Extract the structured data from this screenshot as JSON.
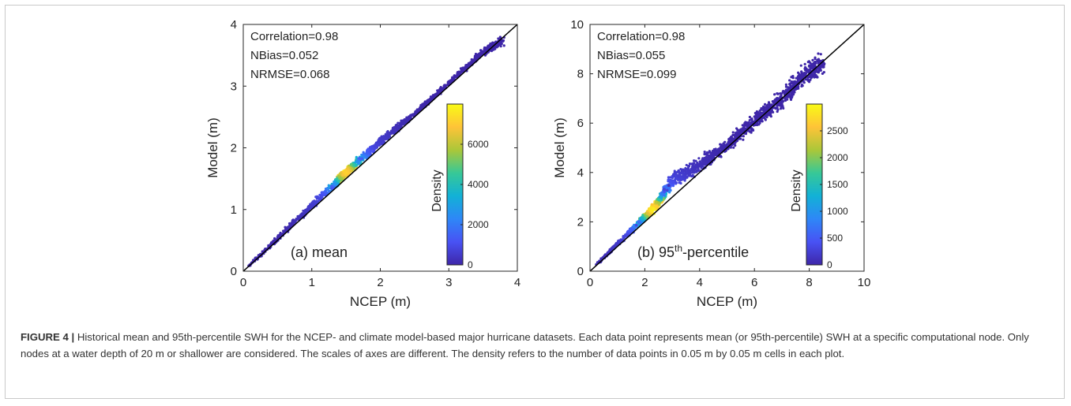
{
  "figure": {
    "caption_label": "FIGURE 4 |",
    "caption_text": " Historical mean and 95th-percentile SWH for the NCEP- and climate model-based major hurricane datasets. Each data point represents mean (or 95th-percentile) SWH at a specific computational node. Only nodes at a water depth of 20 m or shallower are considered. The scales of axes are different. The density refers to the number of data points in 0.05 m by 0.05 m cells in each plot."
  },
  "chart_data": [
    {
      "type": "scatter",
      "panel_label": "(a) mean",
      "xlabel": "NCEP (m)",
      "ylabel": "Model (m)",
      "xlim": [
        0,
        4
      ],
      "ylim": [
        0,
        4
      ],
      "xticks": [
        0,
        1,
        2,
        3,
        4
      ],
      "yticks": [
        0,
        1,
        2,
        3,
        4
      ],
      "stats": [
        "Correlation=0.98",
        "NBias=0.052",
        "NRMSE=0.068"
      ],
      "reference_line": {
        "x": [
          0,
          4
        ],
        "y": [
          0,
          4
        ]
      },
      "colorbar": {
        "label": "Density",
        "range": [
          0,
          8000
        ],
        "ticks": [
          0,
          2000,
          4000,
          6000
        ]
      },
      "trend": {
        "x": [
          0.0,
          0.5,
          1.0,
          1.5,
          2.0,
          2.5,
          3.0,
          3.5,
          3.8
        ],
        "y": [
          0.0,
          0.53,
          1.06,
          1.6,
          2.1,
          2.55,
          3.05,
          3.55,
          3.75
        ]
      },
      "band_width": [
        0.03,
        0.06,
        0.09,
        0.12,
        0.1,
        0.06,
        0.06,
        0.08,
        0.12
      ],
      "hotspot": {
        "x": 1.5,
        "y": 1.6,
        "density": 7200
      },
      "grid": false,
      "legend": "none"
    },
    {
      "type": "scatter",
      "panel_label": "(b) 95",
      "panel_label_sup": "th",
      "panel_label_tail": "-percentile",
      "xlabel": "NCEP (m)",
      "ylabel": "Model (m)",
      "xlim": [
        0,
        10
      ],
      "ylim": [
        0,
        10
      ],
      "xticks": [
        0,
        2,
        4,
        6,
        8,
        10
      ],
      "yticks": [
        0,
        2,
        4,
        6,
        8,
        10
      ],
      "stats": [
        "Correlation=0.98",
        "NBias=0.055",
        "NRMSE=0.099"
      ],
      "reference_line": {
        "x": [
          0,
          10
        ],
        "y": [
          0,
          10
        ]
      },
      "colorbar": {
        "label": "Density",
        "range": [
          0,
          3000
        ],
        "ticks": [
          0,
          500,
          1000,
          1500,
          2000,
          2500
        ]
      },
      "trend": {
        "x": [
          0.0,
          1.0,
          2.0,
          2.5,
          3.0,
          3.5,
          4.0,
          5.0,
          6.0,
          7.0,
          8.0,
          8.5
        ],
        "y": [
          0.0,
          1.1,
          2.2,
          2.8,
          3.7,
          4.0,
          4.3,
          5.1,
          6.1,
          7.0,
          8.1,
          8.4
        ]
      },
      "band_width": [
        0.05,
        0.12,
        0.22,
        0.35,
        0.4,
        0.45,
        0.4,
        0.35,
        0.45,
        0.5,
        0.6,
        0.6
      ],
      "hotspot": {
        "x": 2.3,
        "y": 2.5,
        "density": 2900
      },
      "grid": false,
      "legend": "none"
    }
  ]
}
